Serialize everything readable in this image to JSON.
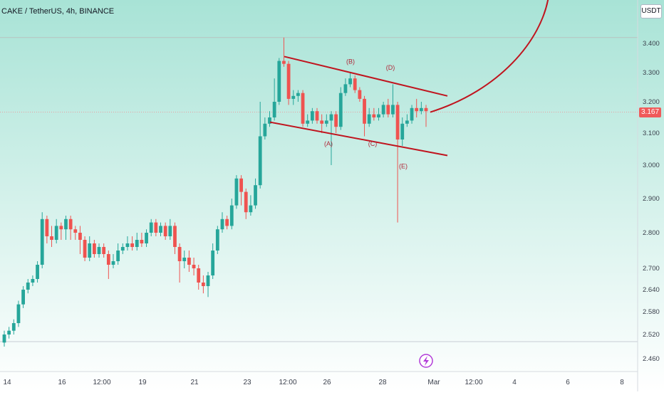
{
  "header": {
    "title": "CAKE / TetherUS, 4h, BINANCE",
    "unit": "USDT",
    "last_price": "3.167"
  },
  "colors": {
    "bg_top": "#a8e3d6",
    "bg_bottom": "#ffffff",
    "up_candle": "#26a69a",
    "down_candle": "#ef5350",
    "pattern_line": "#c0141e",
    "price_tag": "#f05a5a"
  },
  "chart_data": {
    "type": "candlestick",
    "y_ticks": [
      "3.400",
      "3.300",
      "3.200",
      "3.100",
      "3.000",
      "2.900",
      "2.800",
      "2.700",
      "2.640",
      "2.580",
      "2.520",
      "2.460"
    ],
    "x_ticks": [
      "14",
      "16",
      "12:00",
      "19",
      "21",
      "23",
      "12:00",
      "26",
      "28",
      "Mar",
      "12:00",
      "4",
      "6",
      "8"
    ],
    "ylim": [
      2.44,
      3.44
    ],
    "candles": [
      [
        2.5,
        2.52,
        2.53,
        2.49
      ],
      [
        2.52,
        2.53,
        2.54,
        2.51
      ],
      [
        2.53,
        2.55,
        2.56,
        2.52
      ],
      [
        2.55,
        2.6,
        2.61,
        2.54
      ],
      [
        2.6,
        2.64,
        2.65,
        2.59
      ],
      [
        2.64,
        2.66,
        2.67,
        2.63
      ],
      [
        2.66,
        2.67,
        2.68,
        2.65
      ],
      [
        2.67,
        2.71,
        2.72,
        2.66
      ],
      [
        2.71,
        2.84,
        2.86,
        2.7
      ],
      [
        2.84,
        2.79,
        2.85,
        2.77
      ],
      [
        2.79,
        2.78,
        2.82,
        2.76
      ],
      [
        2.78,
        2.82,
        2.84,
        2.77
      ],
      [
        2.82,
        2.81,
        2.83,
        2.78
      ],
      [
        2.81,
        2.84,
        2.85,
        2.78
      ],
      [
        2.84,
        2.81,
        2.85,
        2.78
      ],
      [
        2.81,
        2.8,
        2.82,
        2.78
      ],
      [
        2.8,
        2.78,
        2.82,
        2.74
      ],
      [
        2.78,
        2.73,
        2.79,
        2.72
      ],
      [
        2.73,
        2.77,
        2.79,
        2.72
      ],
      [
        2.77,
        2.74,
        2.78,
        2.73
      ],
      [
        2.74,
        2.76,
        2.77,
        2.73
      ],
      [
        2.76,
        2.74,
        2.77,
        2.73
      ],
      [
        2.74,
        2.71,
        2.75,
        2.67
      ],
      [
        2.71,
        2.72,
        2.74,
        2.7
      ],
      [
        2.72,
        2.75,
        2.77,
        2.71
      ],
      [
        2.75,
        2.76,
        2.77,
        2.74
      ],
      [
        2.76,
        2.77,
        2.79,
        2.75
      ],
      [
        2.77,
        2.76,
        2.79,
        2.75
      ],
      [
        2.76,
        2.78,
        2.8,
        2.75
      ],
      [
        2.78,
        2.77,
        2.8,
        2.76
      ],
      [
        2.77,
        2.8,
        2.81,
        2.76
      ],
      [
        2.8,
        2.83,
        2.84,
        2.79
      ],
      [
        2.83,
        2.8,
        2.84,
        2.79
      ],
      [
        2.8,
        2.82,
        2.83,
        2.79
      ],
      [
        2.82,
        2.79,
        2.83,
        2.78
      ],
      [
        2.79,
        2.82,
        2.84,
        2.78
      ],
      [
        2.82,
        2.76,
        2.83,
        2.74
      ],
      [
        2.76,
        2.72,
        2.77,
        2.66
      ],
      [
        2.72,
        2.73,
        2.75,
        2.7
      ],
      [
        2.73,
        2.71,
        2.75,
        2.69
      ],
      [
        2.71,
        2.7,
        2.73,
        2.68
      ],
      [
        2.7,
        2.66,
        2.71,
        2.64
      ],
      [
        2.66,
        2.65,
        2.68,
        2.63
      ],
      [
        2.65,
        2.68,
        2.69,
        2.62
      ],
      [
        2.68,
        2.75,
        2.77,
        2.67
      ],
      [
        2.75,
        2.81,
        2.82,
        2.74
      ],
      [
        2.81,
        2.84,
        2.86,
        2.8
      ],
      [
        2.84,
        2.82,
        2.85,
        2.81
      ],
      [
        2.82,
        2.88,
        2.9,
        2.81
      ],
      [
        2.88,
        2.96,
        2.97,
        2.87
      ],
      [
        2.96,
        2.92,
        2.97,
        2.88
      ],
      [
        2.92,
        2.86,
        2.93,
        2.84
      ],
      [
        2.86,
        2.88,
        2.91,
        2.85
      ],
      [
        2.88,
        2.94,
        2.96,
        2.87
      ],
      [
        2.94,
        3.09,
        3.2,
        2.93
      ],
      [
        3.09,
        3.13,
        3.15,
        3.08
      ],
      [
        3.13,
        3.15,
        3.17,
        3.12
      ],
      [
        3.15,
        3.2,
        3.28,
        3.14
      ],
      [
        3.2,
        3.34,
        3.35,
        3.19
      ],
      [
        3.34,
        3.33,
        3.42,
        3.32
      ],
      [
        3.33,
        3.21,
        3.34,
        3.19
      ],
      [
        3.21,
        3.22,
        3.24,
        3.19
      ],
      [
        3.22,
        3.23,
        3.24,
        3.2
      ],
      [
        3.23,
        3.13,
        3.24,
        3.12
      ],
      [
        3.13,
        3.14,
        3.16,
        3.12
      ],
      [
        3.14,
        3.17,
        3.18,
        3.13
      ],
      [
        3.17,
        3.14,
        3.18,
        3.13
      ],
      [
        3.14,
        3.13,
        3.16,
        3.1
      ],
      [
        3.13,
        3.14,
        3.16,
        3.12
      ],
      [
        3.14,
        3.16,
        3.17,
        3.0
      ],
      [
        3.16,
        3.12,
        3.17,
        3.1
      ],
      [
        3.12,
        3.23,
        3.25,
        3.11
      ],
      [
        3.23,
        3.26,
        3.28,
        3.22
      ],
      [
        3.26,
        3.28,
        3.3,
        3.25
      ],
      [
        3.28,
        3.24,
        3.29,
        3.23
      ],
      [
        3.24,
        3.21,
        3.25,
        3.2
      ],
      [
        3.21,
        3.13,
        3.22,
        3.09
      ],
      [
        3.13,
        3.16,
        3.18,
        3.12
      ],
      [
        3.16,
        3.15,
        3.18,
        3.14
      ],
      [
        3.15,
        3.16,
        3.18,
        3.14
      ],
      [
        3.16,
        3.19,
        3.2,
        3.15
      ],
      [
        3.19,
        3.16,
        3.21,
        3.15
      ],
      [
        3.16,
        3.19,
        3.26,
        3.15
      ],
      [
        3.19,
        3.08,
        3.2,
        2.83
      ],
      [
        3.08,
        3.13,
        3.15,
        3.06
      ],
      [
        3.13,
        3.14,
        3.16,
        3.12
      ],
      [
        3.14,
        3.18,
        3.19,
        3.13
      ],
      [
        3.18,
        3.17,
        3.21,
        3.15
      ],
      [
        3.17,
        3.18,
        3.2,
        3.16
      ],
      [
        3.18,
        3.17,
        3.19,
        3.12
      ]
    ],
    "wave_labels": [
      {
        "text": "(A)",
        "value": 3.06
      },
      {
        "text": "(B)",
        "value": 3.33
      },
      {
        "text": "(C)",
        "value": 3.06
      },
      {
        "text": "(D)",
        "value": 3.31
      },
      {
        "text": "(E)",
        "value": 2.99
      }
    ],
    "current_price": 3.167,
    "upper_reference": 3.42,
    "lower_reference": 2.52
  }
}
